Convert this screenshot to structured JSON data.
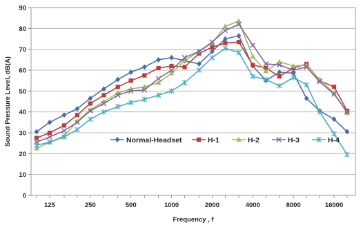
{
  "chart_data": {
    "type": "line",
    "xlabel": "Frequency , f",
    "ylabel": "Sound Pressure Level, dB(A)",
    "x_tick_labels": [
      "125",
      "250",
      "500",
      "1000",
      "2000",
      "4000",
      "8000",
      "16000"
    ],
    "x_points": [
      "100",
      "125",
      "160",
      "200",
      "250",
      "315",
      "400",
      "500",
      "630",
      "800",
      "1000",
      "1250",
      "1600",
      "2000",
      "2500",
      "3150",
      "4000",
      "5000",
      "6300",
      "8000",
      "10000",
      "12500",
      "16000",
      "20000"
    ],
    "x_scale": "log",
    "ylim": [
      0,
      90
    ],
    "y_ticks": [
      0,
      10,
      20,
      30,
      40,
      50,
      60,
      70,
      80,
      90
    ],
    "grid": "horizontal",
    "legend_position": "lower-center",
    "series": [
      {
        "name": "Normal-Headset",
        "color": "#4A6FA5",
        "marker": "diamond",
        "values": [
          30.5,
          35,
          38.5,
          41.5,
          46.5,
          51,
          55.5,
          59,
          61.5,
          65,
          66,
          64.5,
          63,
          69,
          75,
          76.5,
          62,
          55,
          59,
          58.5,
          46.5,
          40.5,
          36.5,
          30.5
        ]
      },
      {
        "name": "H-1",
        "color": "#C0393B",
        "marker": "square",
        "values": [
          27.5,
          30,
          33.5,
          38.5,
          44,
          48,
          52,
          55,
          57.5,
          61,
          62,
          61.5,
          68,
          71,
          73,
          73.5,
          62.5,
          61,
          57,
          61,
          63,
          55,
          52,
          40.5
        ]
      },
      {
        "name": "H-2",
        "color": "#9BBB59",
        "marker": "triangle",
        "values": [
          22.5,
          25.5,
          28.5,
          35.5,
          41,
          45,
          49,
          51,
          52,
          54,
          58.5,
          64.5,
          69,
          73,
          81,
          83.5,
          66.5,
          59.5,
          64,
          62,
          62.5,
          55.5,
          49,
          39.5
        ]
      },
      {
        "name": "H-3",
        "color": "#8064A2",
        "marker": "x",
        "values": [
          25.5,
          28,
          31,
          35,
          40.5,
          44,
          48,
          50,
          50.5,
          56,
          60,
          66,
          69,
          73.5,
          79,
          82,
          72,
          63,
          62.5,
          60,
          61.5,
          54.5,
          48.5,
          40
        ]
      },
      {
        "name": "H-4",
        "color": "#4BACC6",
        "marker": "asterisk",
        "values": [
          24,
          25.5,
          28,
          31.5,
          36.5,
          40,
          42.5,
          44.5,
          46,
          48,
          50,
          54,
          60,
          66,
          70.5,
          68.5,
          57,
          55.5,
          52.5,
          56.5,
          53,
          40,
          29.5,
          19.5
        ]
      }
    ]
  }
}
